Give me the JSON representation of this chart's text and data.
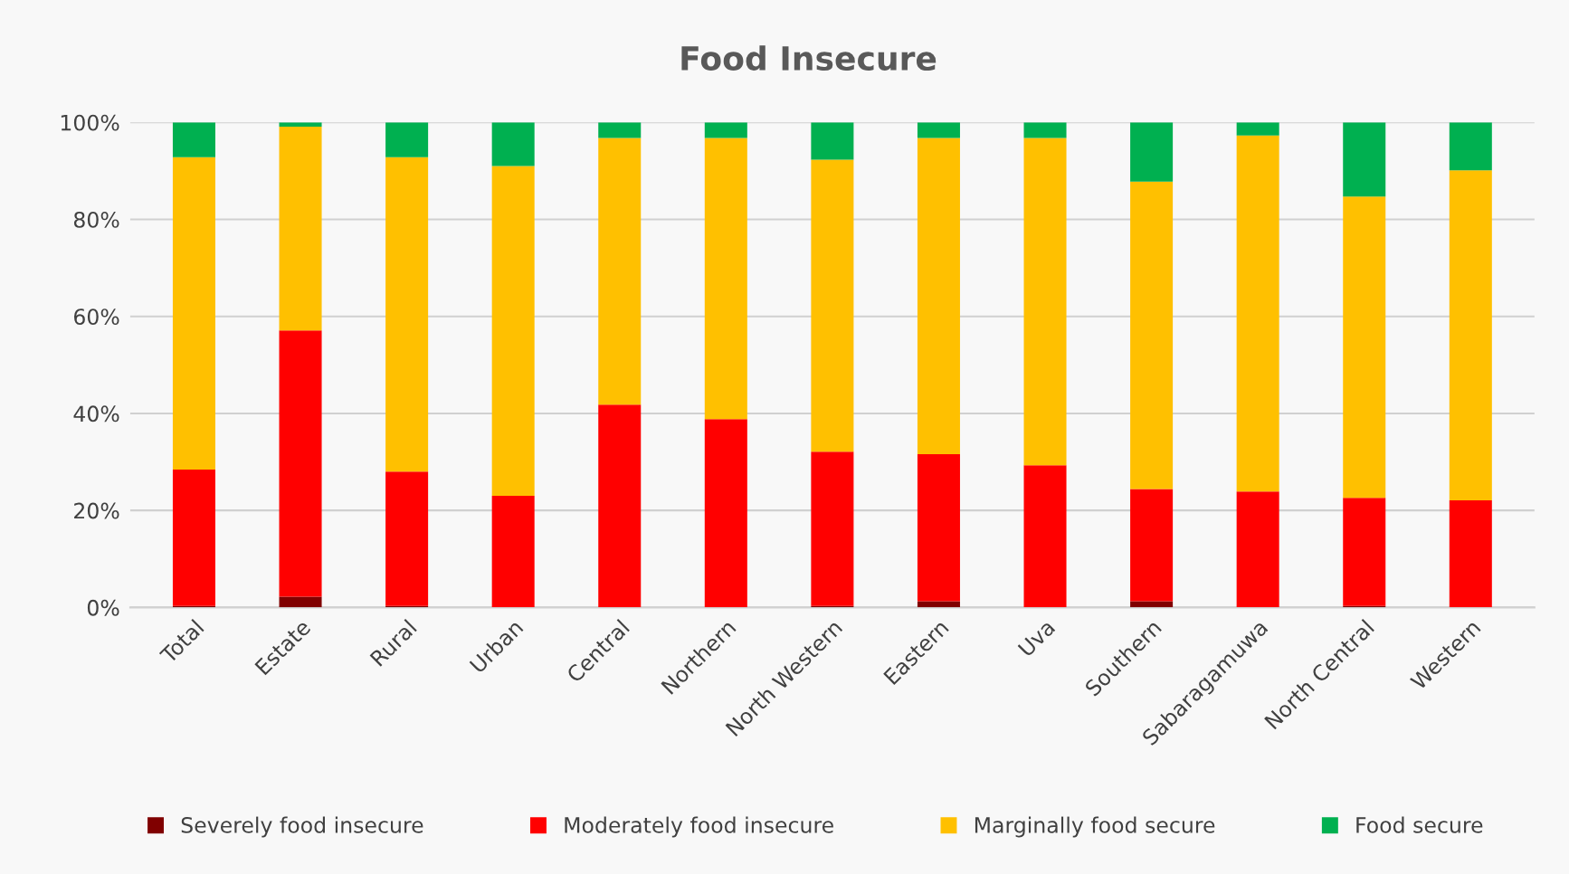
{
  "chart_data": {
    "type": "bar",
    "title": "Food Insecure",
    "stacked": true,
    "categories": [
      "Total",
      "Estate",
      "Rural",
      "Urban",
      "Central",
      "Northern",
      "North Western",
      "Eastern",
      "Uva",
      "Southern",
      "Sabaragamuwa",
      "North Central",
      "Western"
    ],
    "series": [
      {
        "name": "Severely food insecure",
        "color": "#800000",
        "values": [
          0.3,
          2.2,
          0.3,
          0,
          0,
          0,
          0.3,
          1.3,
          0,
          1.3,
          0,
          0.3,
          0
        ]
      },
      {
        "name": "Moderately food insecure",
        "color": "#ff0000",
        "values": [
          28.1,
          54.9,
          27.7,
          23.0,
          41.8,
          38.8,
          31.8,
          30.3,
          29.3,
          23.1,
          23.9,
          22.3,
          22.1
        ]
      },
      {
        "name": "Marginally food secure",
        "color": "#ffc000",
        "values": [
          64.4,
          42.0,
          64.8,
          68.0,
          55.0,
          58.0,
          60.2,
          65.2,
          67.5,
          63.4,
          73.4,
          62.1,
          68.0
        ]
      },
      {
        "name": "Food secure",
        "color": "#00b050",
        "values": [
          7.2,
          0.9,
          7.2,
          9.0,
          3.2,
          3.2,
          7.7,
          3.2,
          3.2,
          12.2,
          2.7,
          15.3,
          9.9
        ]
      }
    ],
    "ylim": [
      0,
      100
    ],
    "yticks": [
      {
        "value": 0,
        "label": "0%"
      },
      {
        "value": 20,
        "label": "20%"
      },
      {
        "value": 40,
        "label": "40%"
      },
      {
        "value": 60,
        "label": "60%"
      },
      {
        "value": 80,
        "label": "80%"
      },
      {
        "value": 100,
        "label": "100%"
      }
    ],
    "grid": "y",
    "legend": "bottom"
  }
}
